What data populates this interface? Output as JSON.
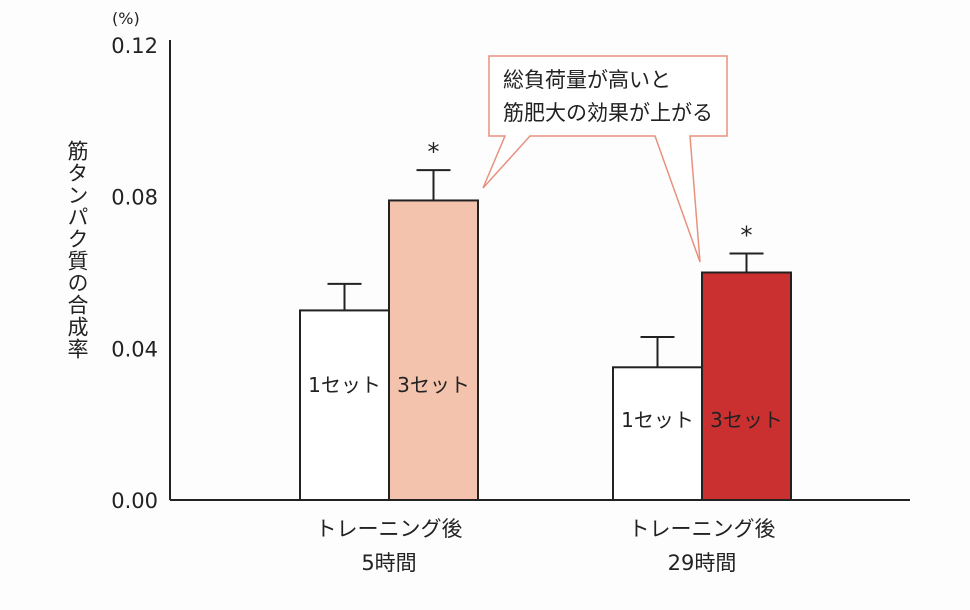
{
  "chart_data": {
    "type": "bar",
    "unit_label": "(%)",
    "ylabel": "筋タンパク質の合成率",
    "ylim": [
      0,
      0.12
    ],
    "yticks": [
      "0.00",
      "0.04",
      "0.08",
      "0.12"
    ],
    "ytick_values": [
      0,
      0.04,
      0.08,
      0.12
    ],
    "categories": [
      {
        "line1": "トレーニング後",
        "line2": "5時間"
      },
      {
        "line1": "トレーニング後",
        "line2": "29時間"
      }
    ],
    "series": [
      {
        "name": "1セット",
        "values": [
          0.05,
          0.035
        ],
        "errors": [
          0.007,
          0.008
        ],
        "colors": [
          "#ffffff",
          "#ffffff"
        ]
      },
      {
        "name": "3セット",
        "values": [
          0.079,
          0.06
        ],
        "errors": [
          0.008,
          0.005
        ],
        "colors": [
          "#f3c3ae",
          "#c9302f"
        ],
        "significance": [
          "*",
          "*"
        ]
      }
    ],
    "annotation": {
      "line1": "総負荷量が高いと",
      "line2": "筋肥大の効果が上がる",
      "border_color": "#e8917f"
    }
  }
}
